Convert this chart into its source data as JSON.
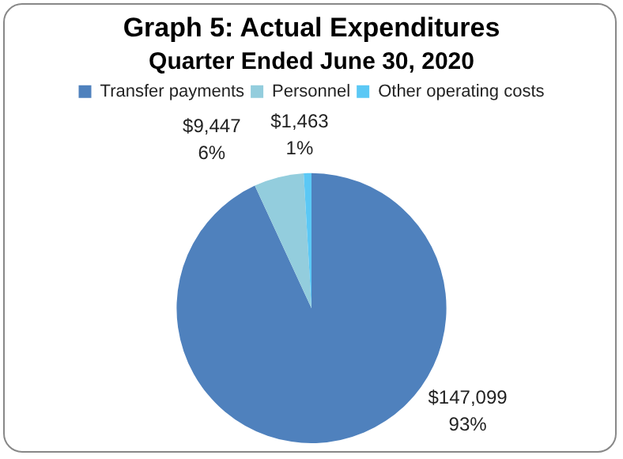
{
  "chart_data": {
    "type": "pie",
    "title": "Graph 5: Actual Expenditures",
    "subtitle": "Quarter Ended June 30, 2020",
    "categories": [
      "Transfer payments",
      "Personnel",
      "Other operating costs"
    ],
    "values": [
      147099,
      9447,
      1463
    ],
    "colors": [
      "#4f81bd",
      "#93cddd",
      "#5bc8f5"
    ],
    "value_labels": [
      "$147,099\n93%",
      "$9,447\n6%",
      "$1,463\n1%"
    ],
    "legend": "top"
  }
}
